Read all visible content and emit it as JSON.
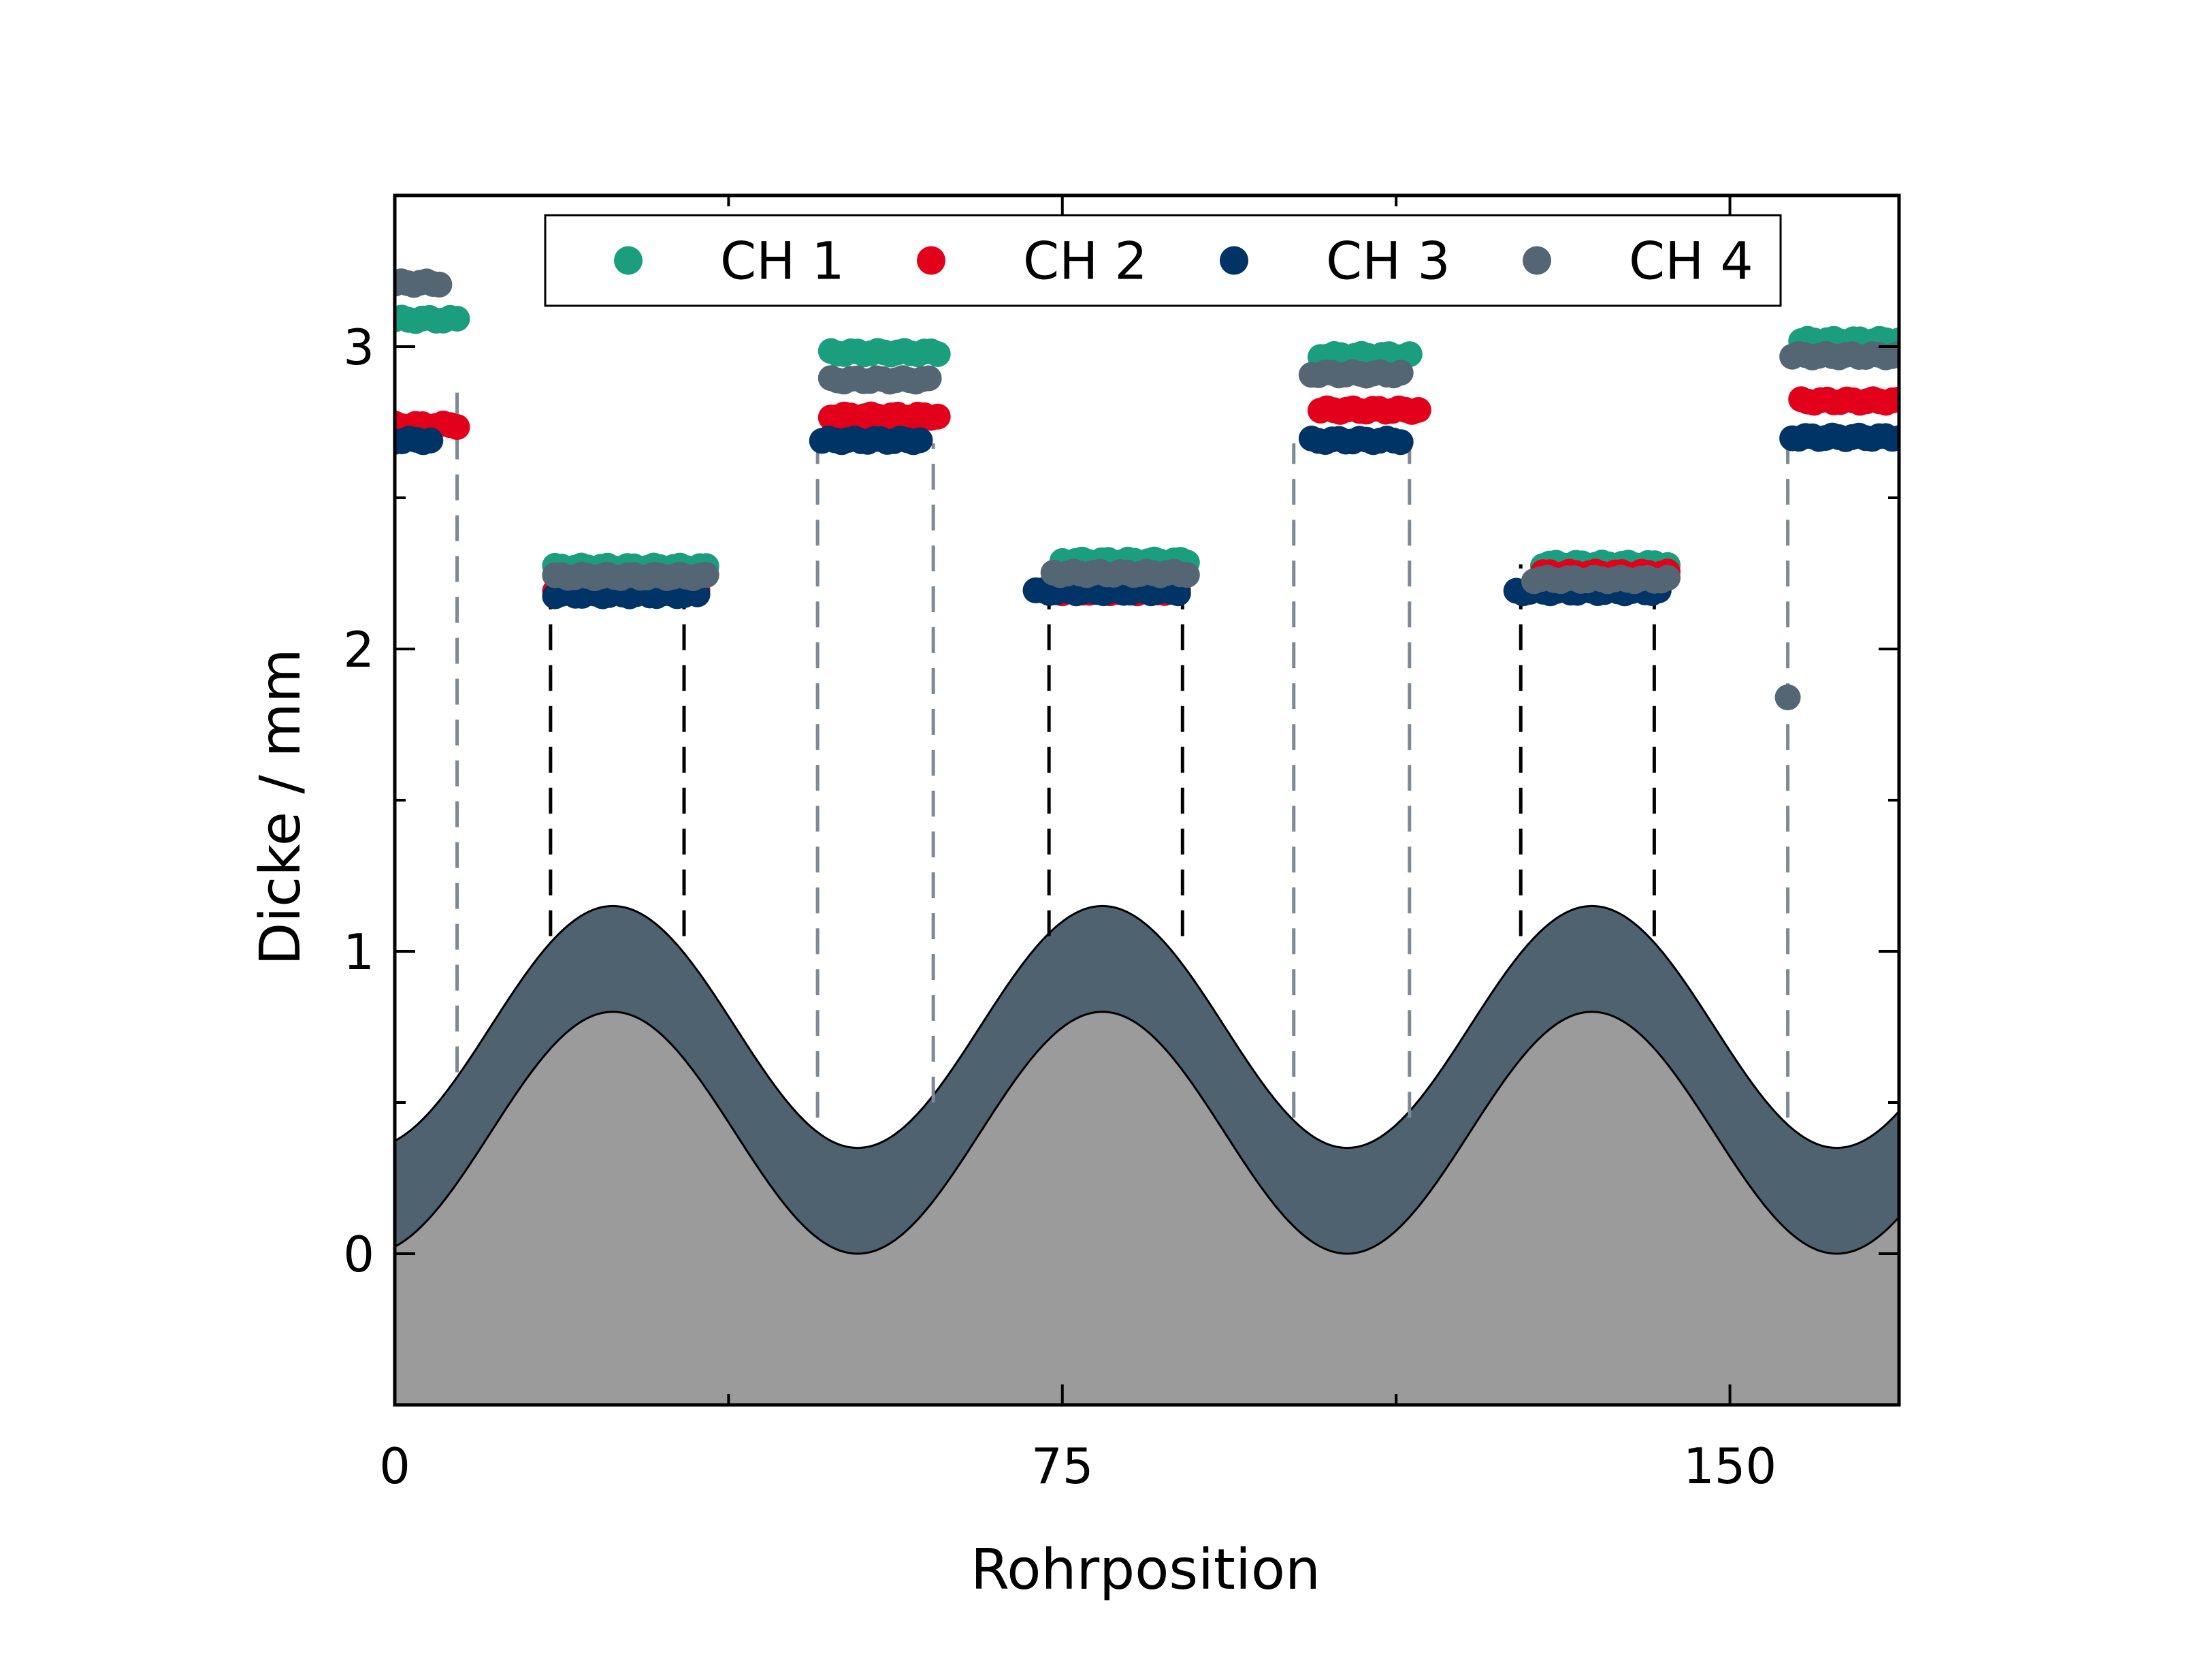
{
  "chart_data": {
    "type": "scatter",
    "xlabel": "Rohrposition",
    "ylabel": "Dicke / mm",
    "xlim": [
      0,
      169
    ],
    "ylim": [
      -0.5,
      3.5
    ],
    "xticks": [
      {
        "value": 0,
        "label": "0"
      },
      {
        "value": 75,
        "label": "75"
      },
      {
        "value": 150,
        "label": "150"
      }
    ],
    "xminor": [
      37.5,
      112.5
    ],
    "yticks": [
      {
        "value": 0,
        "label": "0"
      },
      {
        "value": 1,
        "label": "1"
      },
      {
        "value": 2,
        "label": "2"
      },
      {
        "value": 3,
        "label": "3"
      }
    ],
    "yminor": [
      -0.5,
      0.5,
      1.5,
      2.5
    ],
    "grid": false,
    "legend": {
      "position": "top",
      "orientation": "horizontal"
    },
    "series": [
      {
        "name": "CH 1",
        "color": "#1b9e7d",
        "segments": [
          {
            "x0": 0,
            "x1": 7,
            "y": 3.09
          },
          {
            "x0": 18,
            "x1": 35,
            "y": 2.27
          },
          {
            "x0": 49,
            "x1": 61,
            "y": 2.98
          },
          {
            "x0": 75,
            "x1": 89,
            "y": 2.29
          },
          {
            "x0": 104,
            "x1": 114,
            "y": 2.97
          },
          {
            "x0": 129,
            "x1": 143,
            "y": 2.28
          },
          {
            "x0": 158,
            "x1": 169,
            "y": 3.02
          }
        ]
      },
      {
        "name": "CH 2",
        "color": "#e3001b",
        "segments": [
          {
            "x0": 0,
            "x1": 7,
            "y": 2.74
          },
          {
            "x0": 18,
            "x1": 34,
            "y": 2.19
          },
          {
            "x0": 49,
            "x1": 61,
            "y": 2.77
          },
          {
            "x0": 75,
            "x1": 88,
            "y": 2.19
          },
          {
            "x0": 104,
            "x1": 115,
            "y": 2.79
          },
          {
            "x0": 129,
            "x1": 143,
            "y": 2.25
          },
          {
            "x0": 158,
            "x1": 169,
            "y": 2.82
          }
        ]
      },
      {
        "name": "CH 3",
        "color": "#003366",
        "segments": [
          {
            "x0": 0,
            "x1": 4,
            "y": 2.69
          },
          {
            "x0": 18,
            "x1": 34,
            "y": 2.18
          },
          {
            "x0": 48,
            "x1": 59,
            "y": 2.69
          },
          {
            "x0": 72,
            "x1": 88,
            "y": 2.19
          },
          {
            "x0": 103,
            "x1": 113,
            "y": 2.69
          },
          {
            "x0": 126,
            "x1": 142,
            "y": 2.19
          },
          {
            "x0": 157,
            "x1": 169,
            "y": 2.7
          }
        ]
      },
      {
        "name": "CH 4",
        "color": "#546674",
        "segments": [
          {
            "x0": 0,
            "x1": 5,
            "y": 3.21
          },
          {
            "x0": 18,
            "x1": 35,
            "y": 2.24
          },
          {
            "x0": 49,
            "x1": 60,
            "y": 2.89
          },
          {
            "x0": 74,
            "x1": 89,
            "y": 2.25
          },
          {
            "x0": 103,
            "x1": 113,
            "y": 2.91
          },
          {
            "x0": 128,
            "x1": 143,
            "y": 2.23
          },
          {
            "x0": 157,
            "x1": 169,
            "y": 2.97
          }
        ],
        "points": [
          {
            "x": 156.5,
            "y": 1.84
          }
        ]
      }
    ],
    "dashed_lines": [
      {
        "x": 7,
        "y0": 0.6,
        "y1": 2.88,
        "color": "#7d8a95"
      },
      {
        "x": 17.5,
        "y0": 1.05,
        "y1": 2.28,
        "color": "#000000"
      },
      {
        "x": 32.5,
        "y0": 1.05,
        "y1": 2.28,
        "color": "#000000"
      },
      {
        "x": 47.5,
        "y0": 0.45,
        "y1": 2.68,
        "color": "#7d8a95"
      },
      {
        "x": 60.5,
        "y0": 0.5,
        "y1": 2.68,
        "color": "#7d8a95"
      },
      {
        "x": 73.5,
        "y0": 1.05,
        "y1": 2.28,
        "color": "#000000"
      },
      {
        "x": 88.5,
        "y0": 1.05,
        "y1": 2.28,
        "color": "#000000"
      },
      {
        "x": 101,
        "y0": 0.45,
        "y1": 2.68,
        "color": "#7d8a95"
      },
      {
        "x": 114,
        "y0": 0.45,
        "y1": 2.68,
        "color": "#7d8a95"
      },
      {
        "x": 126.5,
        "y0": 1.05,
        "y1": 2.28,
        "color": "#000000"
      },
      {
        "x": 141.5,
        "y0": 1.05,
        "y1": 2.28,
        "color": "#000000"
      },
      {
        "x": 156.5,
        "y0": 0.45,
        "y1": 2.68,
        "color": "#7d8a95"
      }
    ],
    "wave": {
      "period": 55,
      "peak_x": 24.5,
      "inner_min": 0,
      "inner_max": 0.8,
      "outer_min": 0.35,
      "outer_max": 1.15,
      "inner_color": "#9b9b9b",
      "outer_color": "#4e6270"
    }
  }
}
